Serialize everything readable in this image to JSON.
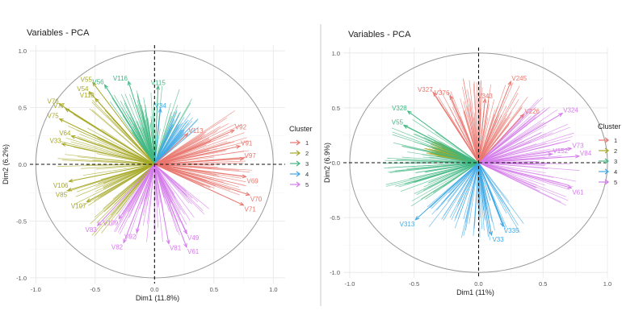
{
  "chart_data": [
    {
      "type": "scatter",
      "subtype": "pca-variable-correlation-circle",
      "title": "Variables - PCA",
      "xlabel": "Dim1 (11.8%)",
      "ylabel": "Dim2 (6.2%)",
      "xlim": [
        -1.05,
        1.1
      ],
      "ylim": [
        -1.05,
        1.05
      ],
      "x_ticks": [
        -1.0,
        -0.5,
        0.0,
        0.5,
        1.0
      ],
      "y_ticks": [
        -1.0,
        -0.5,
        0.0,
        0.5,
        1.0
      ],
      "x_tick_labels": [
        "-1.0",
        "-0.5",
        "0.0",
        "0.5",
        "1.0"
      ],
      "y_tick_labels": [
        "-1.0",
        "-0.5",
        "0.0",
        "0.5",
        "1.0"
      ],
      "legend": {
        "title": "Cluster",
        "entries": [
          "1",
          "2",
          "3",
          "4",
          "5"
        ],
        "position": "right"
      },
      "labeled_points": [
        {
          "label": "V55",
          "x": -0.52,
          "y": 0.72,
          "cluster": "2"
        },
        {
          "label": "V54",
          "x": -0.55,
          "y": 0.64,
          "cluster": "2"
        },
        {
          "label": "V56",
          "x": -0.42,
          "y": 0.7,
          "cluster": "3"
        },
        {
          "label": "V116",
          "x": -0.22,
          "y": 0.73,
          "cluster": "3"
        },
        {
          "label": "V115",
          "x": 0.03,
          "y": 0.69,
          "cluster": "3"
        },
        {
          "label": "V118",
          "x": -0.5,
          "y": 0.58,
          "cluster": "2"
        },
        {
          "label": "V76",
          "x": -0.8,
          "y": 0.53,
          "cluster": "2"
        },
        {
          "label": "V77",
          "x": -0.75,
          "y": 0.49,
          "cluster": "2"
        },
        {
          "label": "V75",
          "x": -0.8,
          "y": 0.4,
          "cluster": "2"
        },
        {
          "label": "V34",
          "x": 0.05,
          "y": 0.49,
          "cluster": "4"
        },
        {
          "label": "V64",
          "x": -0.7,
          "y": 0.25,
          "cluster": "2"
        },
        {
          "label": "V33",
          "x": -0.78,
          "y": 0.18,
          "cluster": "2"
        },
        {
          "label": "V113",
          "x": 0.28,
          "y": 0.27,
          "cluster": "1"
        },
        {
          "label": "V92",
          "x": 0.67,
          "y": 0.3,
          "cluster": "1"
        },
        {
          "label": "V91",
          "x": 0.72,
          "y": 0.16,
          "cluster": "1"
        },
        {
          "label": "V97",
          "x": 0.75,
          "y": 0.05,
          "cluster": "1"
        },
        {
          "label": "V106",
          "x": -0.72,
          "y": -0.15,
          "cluster": "2"
        },
        {
          "label": "V85",
          "x": -0.73,
          "y": -0.23,
          "cluster": "2"
        },
        {
          "label": "V69",
          "x": 0.77,
          "y": -0.11,
          "cluster": "1"
        },
        {
          "label": "V107",
          "x": -0.57,
          "y": -0.33,
          "cluster": "2"
        },
        {
          "label": "V70",
          "x": 0.8,
          "y": -0.27,
          "cluster": "1"
        },
        {
          "label": "V71",
          "x": 0.75,
          "y": -0.36,
          "cluster": "1"
        },
        {
          "label": "V83",
          "x": -0.48,
          "y": -0.54,
          "cluster": "5"
        },
        {
          "label": "V109",
          "x": -0.3,
          "y": -0.48,
          "cluster": "5"
        },
        {
          "label": "V92",
          "x": -0.15,
          "y": -0.6,
          "cluster": "5"
        },
        {
          "label": "V82",
          "x": -0.26,
          "y": -0.69,
          "cluster": "5"
        },
        {
          "label": "V81",
          "x": 0.12,
          "y": -0.7,
          "cluster": "5"
        },
        {
          "label": "V61",
          "x": 0.27,
          "y": -0.73,
          "cluster": "5"
        },
        {
          "label": "V49",
          "x": 0.27,
          "y": -0.61,
          "cluster": "5"
        }
      ]
    },
    {
      "type": "scatter",
      "subtype": "pca-variable-correlation-circle",
      "title": "Variables - PCA",
      "xlabel": "Dim1 (11%)",
      "ylabel": "Dim2 (6.9%)",
      "xlim": [
        -1.05,
        1.0
      ],
      "ylim": [
        -1.05,
        1.05
      ],
      "x_ticks": [
        -1.0,
        -0.5,
        0.0,
        0.5,
        1.0
      ],
      "y_ticks": [
        -1.0,
        -0.5,
        0.0,
        0.5,
        1.0
      ],
      "x_tick_labels": [
        "-1.0",
        "-0.5",
        "0.0",
        "0.5",
        "1.0"
      ],
      "y_tick_labels": [
        "-1.0",
        "-0.5",
        "0.0",
        "0.5",
        "1.0"
      ],
      "legend": {
        "title": "Cluster",
        "entries": [
          "1",
          "2",
          "3",
          "4",
          "5"
        ],
        "position": "right"
      },
      "labeled_points": [
        {
          "label": "V245",
          "x": 0.25,
          "y": 0.74,
          "cluster": "1"
        },
        {
          "label": "V327",
          "x": -0.35,
          "y": 0.64,
          "cluster": "1"
        },
        {
          "label": "V376",
          "x": -0.22,
          "y": 0.61,
          "cluster": "1"
        },
        {
          "label": "V343",
          "x": 0.05,
          "y": 0.58,
          "cluster": "1"
        },
        {
          "label": "V328",
          "x": -0.55,
          "y": 0.47,
          "cluster": "3"
        },
        {
          "label": "V324",
          "x": 0.65,
          "y": 0.45,
          "cluster": "5"
        },
        {
          "label": "V226",
          "x": 0.35,
          "y": 0.44,
          "cluster": "1"
        },
        {
          "label": "V55",
          "x": -0.58,
          "y": 0.34,
          "cluster": "3"
        },
        {
          "label": "V73",
          "x": 0.72,
          "y": 0.13,
          "cluster": "5"
        },
        {
          "label": "V84",
          "x": 0.78,
          "y": 0.06,
          "cluster": "5"
        },
        {
          "label": "V152",
          "x": 0.57,
          "y": 0.08,
          "cluster": "5"
        },
        {
          "label": "V61",
          "x": 0.72,
          "y": -0.23,
          "cluster": "5"
        },
        {
          "label": "V313",
          "x": -0.49,
          "y": -0.52,
          "cluster": "4"
        },
        {
          "label": "V335",
          "x": 0.19,
          "y": -0.58,
          "cluster": "4"
        },
        {
          "label": "V33",
          "x": 0.1,
          "y": -0.66,
          "cluster": "4"
        }
      ]
    }
  ],
  "cluster_colors": {
    "1": "#e8766e",
    "2": "#a6a826",
    "3": "#40b782",
    "4": "#3fa8e6",
    "5": "#d47bea"
  }
}
